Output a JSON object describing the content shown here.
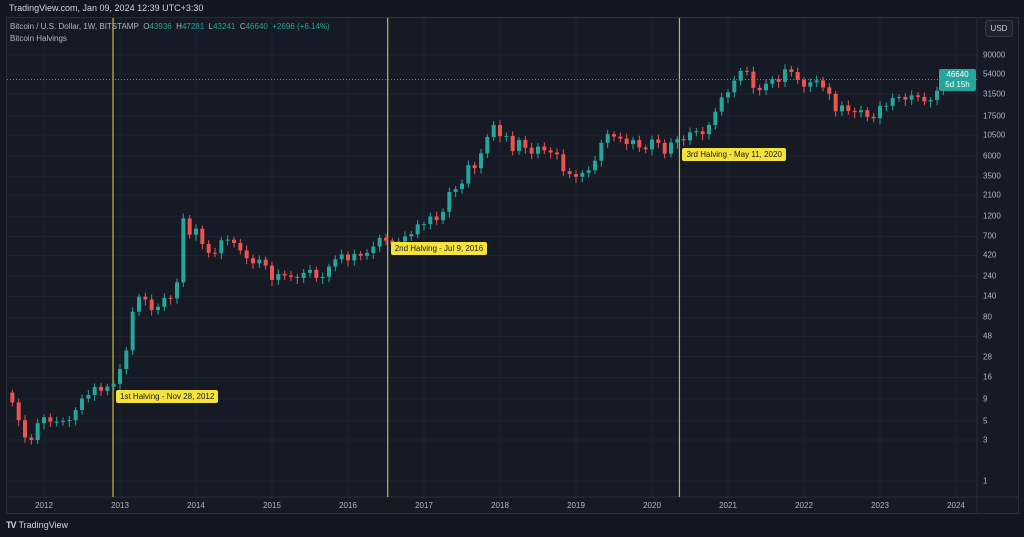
{
  "header": {
    "title": "TradingView.com, Jan 09, 2024 12:39 UTC+3:30"
  },
  "legend": {
    "symbol": "Bitcoin / U.S. Dollar, 1W, BITSTAMP",
    "o_label": "O",
    "o": "43936",
    "h_label": "H",
    "h": "47281",
    "l_label": "L",
    "l": "43241",
    "c_label": "C",
    "c": "46640",
    "change": "+2696 (+6.14%)",
    "indicator": "Bitcoin Halvings"
  },
  "currency": "USD",
  "last_price": {
    "value": "46640",
    "countdown": "5d 15h"
  },
  "brand": {
    "name": "TradingView"
  },
  "colors": {
    "up": "#26a69a",
    "down": "#ef5350",
    "halving": "#f5e33b",
    "background": "#161a25"
  },
  "chart_data": {
    "type": "candlestick",
    "scale": "log",
    "interval_note": "monthly approximation of weekly candles",
    "start_month": "2011-08",
    "closes": [
      8.2,
      5.1,
      3.2,
      3.0,
      4.7,
      5.5,
      4.9,
      4.9,
      5.0,
      5.1,
      6.7,
      9.1,
      10.0,
      12.4,
      11.2,
      12.5,
      13.5,
      20,
      33,
      93,
      139,
      129,
      97,
      106,
      135,
      133,
      204,
      1130,
      730,
      860,
      570,
      450,
      445,
      630,
      640,
      585,
      480,
      390,
      340,
      375,
      320,
      218,
      255,
      245,
      236,
      230,
      263,
      285,
      230,
      236,
      312,
      378,
      430,
      368,
      437,
      416,
      448,
      532,
      672,
      624,
      573,
      608,
      700,
      740,
      963,
      970,
      1190,
      1080,
      1350,
      2300,
      2480,
      2870,
      4700,
      4340,
      6450,
      10000,
      13800,
      10200,
      10300,
      6900,
      9250,
      7500,
      6400,
      7750,
      7000,
      6600,
      6300,
      4000,
      3700,
      3450,
      3820,
      4100,
      5300,
      8550,
      10800,
      10100,
      9600,
      8300,
      9200,
      7550,
      7200,
      9350,
      8550,
      6400,
      8600,
      9450,
      9150,
      11300,
      11650,
      10800,
      13800,
      19700,
      28900,
      33100,
      45200,
      58800,
      57700,
      37300,
      35000,
      41500,
      47100,
      43800,
      61300,
      57000,
      46200,
      38500,
      43200,
      45500,
      37700,
      31800,
      19900,
      23300,
      20100,
      19400,
      20500,
      17200,
      16500,
      23100,
      23100,
      28400,
      29200,
      27200,
      30500,
      29200,
      25900,
      27000,
      34600,
      37700,
      42300,
      46640
    ],
    "price_ticks": [
      "90000",
      "54000",
      "31500",
      "17500",
      "10500",
      "6000",
      "3500",
      "2100",
      "1200",
      "700",
      "420",
      "240",
      "140",
      "80",
      "48",
      "28",
      "16",
      "9",
      "5",
      "3",
      "1"
    ],
    "year_ticks": [
      "2012",
      "2013",
      "2014",
      "2015",
      "2016",
      "2017",
      "2018",
      "2019",
      "2020",
      "2021",
      "2022",
      "2023",
      "2024"
    ],
    "halvings": [
      {
        "label": "1st Halving - Nov 28, 2012",
        "date": "2012-11-28"
      },
      {
        "label": "2nd Halving - Jul 9, 2016",
        "date": "2016-07-09"
      },
      {
        "label": "3rd Halving - May 11, 2020",
        "date": "2020-05-11"
      }
    ]
  }
}
